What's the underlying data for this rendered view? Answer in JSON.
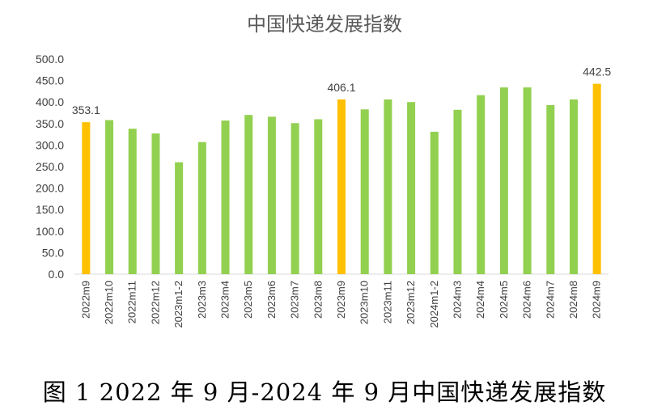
{
  "chart_data": {
    "type": "bar",
    "title": "中国快递发展指数",
    "categories": [
      "2022m9",
      "2022m10",
      "2022m11",
      "2022m12",
      "2023m1-2",
      "2023m3",
      "2023m4",
      "2023m5",
      "2023m6",
      "2023m7",
      "2023m8",
      "2023m9",
      "2023m10",
      "2023m11",
      "2023m12",
      "2024m1-2",
      "2024m3",
      "2024m4",
      "2024m5",
      "2024m6",
      "2024m7",
      "2024m8",
      "2024m9"
    ],
    "values": [
      353.1,
      358,
      338,
      327,
      260,
      307,
      357,
      370,
      366,
      351,
      360,
      406.1,
      383,
      406,
      400,
      331,
      382,
      416,
      434,
      434,
      393,
      406,
      442.5
    ],
    "highlighted": [
      "2022m9",
      "2023m9",
      "2024m9"
    ],
    "data_labels": {
      "2022m9": "353.1",
      "2023m9": "406.1",
      "2024m9": "442.5"
    },
    "ylim": [
      0,
      500
    ],
    "yticks": [
      "0.0",
      "50.0",
      "100.0",
      "150.0",
      "200.0",
      "250.0",
      "300.0",
      "350.0",
      "400.0",
      "450.0",
      "500.0"
    ],
    "grid": false,
    "colors": {
      "normal": "#92D050",
      "highlight": "#FFC000",
      "axis": "#D9D9D9",
      "text": "#404040"
    }
  },
  "caption": "图 1 2022 年 9 月-2024 年 9 月中国快递发展指数"
}
